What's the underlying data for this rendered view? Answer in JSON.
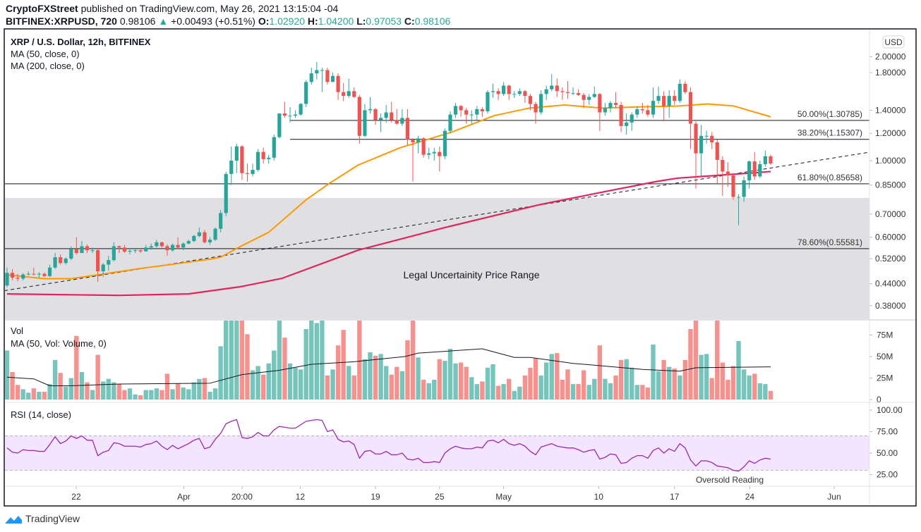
{
  "header": {
    "publisher": "CryptoFXStreet",
    "published_text": "published on TradingView.com, May 26, 2021 13:15:04 -04",
    "symbol": "BITFINEX:XRPUSD, 720",
    "last": "0.98106",
    "change": "+0.00493 (+0.51%)",
    "o_label": "O:",
    "o": "1.02920",
    "h_label": "H:",
    "h": "1.04200",
    "l_label": "L:",
    "l": "0.97053",
    "c_label": "C:",
    "c": "0.98106"
  },
  "legend": {
    "title": "XRP / U.S. Dollar, 12h, BITFINEX",
    "ma50": "MA (50, close, 0)",
    "ma200": "MA (200, close, 0)",
    "vol": "Vol",
    "vol_ma": "MA (50, Vol: Volume, 0)",
    "rsi": "RSI (14, close)"
  },
  "currency_badge": "USD",
  "footer": {
    "brand": "TradingView"
  },
  "colors": {
    "up": "#26a69a",
    "down": "#ef5350",
    "vol_up": "#76c5bd",
    "vol_down": "#f7918e",
    "ma50": "#ff9800",
    "ma200": "#e0245e",
    "rsi": "#9c27b0",
    "zone": "#e0e0e3",
    "rsi_band": "#f3e5fd",
    "brand": "#2196f3"
  },
  "chart_data": {
    "type": "candlestick",
    "title": "XRP / U.S. Dollar, 12h, BITFINEX",
    "y_scale": "log",
    "price_ticks": [
      {
        "v": 2.0,
        "label": "2.00000"
      },
      {
        "v": 1.8,
        "label": "1.80000"
      },
      {
        "v": 1.4,
        "label": "1.40000"
      },
      {
        "v": 1.2,
        "label": "1.20000"
      },
      {
        "v": 1.0,
        "label": "1.00000"
      },
      {
        "v": 0.85,
        "label": "0.85000"
      },
      {
        "v": 0.7,
        "label": "0.70000"
      },
      {
        "v": 0.6,
        "label": "0.60000"
      },
      {
        "v": 0.52,
        "label": "0.52000"
      },
      {
        "v": 0.44,
        "label": "0.44000"
      },
      {
        "v": 0.38,
        "label": "0.38000"
      }
    ],
    "x_ticks": [
      {
        "label": "22",
        "bar": 13.95
      },
      {
        "label": "Apr",
        "bar": 34.1
      },
      {
        "label": "20:00",
        "bar": 45
      },
      {
        "label": "12",
        "bar": 55.9
      },
      {
        "label": "19",
        "bar": 70
      },
      {
        "label": "25",
        "bar": 82
      },
      {
        "label": "May",
        "bar": 94
      },
      {
        "label": "10",
        "bar": 111.8
      },
      {
        "label": "17",
        "bar": 126
      },
      {
        "label": "24",
        "bar": 140.1
      },
      {
        "label": "Jun",
        "bar": 155.9
      }
    ],
    "candles_ohlc": [
      [
        0.435,
        0.49,
        0.43,
        0.473
      ],
      [
        0.473,
        0.485,
        0.45,
        0.458
      ],
      [
        0.458,
        0.47,
        0.447,
        0.455
      ],
      [
        0.455,
        0.472,
        0.45,
        0.468
      ],
      [
        0.468,
        0.478,
        0.465,
        0.47
      ],
      [
        0.47,
        0.49,
        0.465,
        0.468
      ],
      [
        0.468,
        0.475,
        0.458,
        0.47
      ],
      [
        0.47,
        0.474,
        0.46,
        0.463
      ],
      [
        0.463,
        0.5,
        0.46,
        0.49
      ],
      [
        0.49,
        0.54,
        0.485,
        0.525
      ],
      [
        0.525,
        0.535,
        0.5,
        0.505
      ],
      [
        0.505,
        0.525,
        0.5,
        0.52
      ],
      [
        0.52,
        0.565,
        0.515,
        0.555
      ],
      [
        0.555,
        0.6,
        0.535,
        0.54
      ],
      [
        0.54,
        0.585,
        0.54,
        0.565
      ],
      [
        0.565,
        0.572,
        0.54,
        0.55
      ],
      [
        0.55,
        0.56,
        0.54,
        0.55
      ],
      [
        0.55,
        0.556,
        0.445,
        0.478
      ],
      [
        0.478,
        0.505,
        0.46,
        0.5
      ],
      [
        0.5,
        0.53,
        0.48,
        0.515
      ],
      [
        0.515,
        0.58,
        0.51,
        0.565
      ],
      [
        0.565,
        0.568,
        0.54,
        0.56
      ],
      [
        0.56,
        0.57,
        0.54,
        0.545
      ],
      [
        0.545,
        0.558,
        0.535,
        0.548
      ],
      [
        0.548,
        0.556,
        0.54,
        0.55
      ],
      [
        0.55,
        0.552,
        0.54,
        0.546
      ],
      [
        0.546,
        0.57,
        0.545,
        0.56
      ],
      [
        0.56,
        0.575,
        0.552,
        0.565
      ],
      [
        0.565,
        0.59,
        0.56,
        0.58
      ],
      [
        0.58,
        0.582,
        0.56,
        0.565
      ],
      [
        0.565,
        0.572,
        0.53,
        0.55
      ],
      [
        0.55,
        0.575,
        0.545,
        0.57
      ],
      [
        0.57,
        0.6,
        0.555,
        0.56
      ],
      [
        0.56,
        0.58,
        0.55,
        0.575
      ],
      [
        0.575,
        0.59,
        0.572,
        0.585
      ],
      [
        0.585,
        0.61,
        0.58,
        0.605
      ],
      [
        0.605,
        0.64,
        0.6,
        0.62
      ],
      [
        0.62,
        0.63,
        0.575,
        0.58
      ],
      [
        0.58,
        0.6,
        0.57,
        0.59
      ],
      [
        0.59,
        0.64,
        0.585,
        0.635
      ],
      [
        0.635,
        0.72,
        0.62,
        0.705
      ],
      [
        0.705,
        0.93,
        0.69,
        0.915
      ],
      [
        0.915,
        1.1,
        0.85,
        1.0
      ],
      [
        1.0,
        1.12,
        0.92,
        1.1
      ],
      [
        1.1,
        1.11,
        0.88,
        0.92
      ],
      [
        0.92,
        0.98,
        0.87,
        0.915
      ],
      [
        0.915,
        0.98,
        0.9,
        0.94
      ],
      [
        0.94,
        1.08,
        0.93,
        1.06
      ],
      [
        1.06,
        1.09,
        0.98,
        1.01
      ],
      [
        1.01,
        1.04,
        0.98,
        1.02
      ],
      [
        1.02,
        1.19,
        1.0,
        1.17
      ],
      [
        1.17,
        1.37,
        1.16,
        1.37
      ],
      [
        1.37,
        1.48,
        1.33,
        1.35
      ],
      [
        1.35,
        1.43,
        1.29,
        1.35
      ],
      [
        1.35,
        1.4,
        1.33,
        1.36
      ],
      [
        1.36,
        1.47,
        1.35,
        1.46
      ],
      [
        1.46,
        1.71,
        1.43,
        1.69
      ],
      [
        1.69,
        1.86,
        1.66,
        1.79
      ],
      [
        1.79,
        1.93,
        1.72,
        1.83
      ],
      [
        1.83,
        1.86,
        1.58,
        1.83
      ],
      [
        1.83,
        1.86,
        1.66,
        1.69
      ],
      [
        1.69,
        1.8,
        1.69,
        1.76
      ],
      [
        1.76,
        1.79,
        1.5,
        1.58
      ],
      [
        1.58,
        1.68,
        1.49,
        1.54
      ],
      [
        1.54,
        1.73,
        1.52,
        1.59
      ],
      [
        1.59,
        1.63,
        1.52,
        1.53
      ],
      [
        1.53,
        1.55,
        1.12,
        1.18
      ],
      [
        1.18,
        1.46,
        1.17,
        1.4
      ],
      [
        1.4,
        1.53,
        1.37,
        1.41
      ],
      [
        1.41,
        1.42,
        1.27,
        1.31
      ],
      [
        1.31,
        1.37,
        1.21,
        1.33
      ],
      [
        1.33,
        1.45,
        1.29,
        1.38
      ],
      [
        1.38,
        1.48,
        1.29,
        1.31
      ],
      [
        1.31,
        1.41,
        1.27,
        1.28
      ],
      [
        1.28,
        1.41,
        1.26,
        1.33
      ],
      [
        1.33,
        1.41,
        1.11,
        1.15
      ],
      [
        1.15,
        1.16,
        0.87,
        1.13
      ],
      [
        1.13,
        1.18,
        1.05,
        1.16
      ],
      [
        1.16,
        1.17,
        1.02,
        1.04
      ],
      [
        1.04,
        1.09,
        1.01,
        1.05
      ],
      [
        1.05,
        1.09,
        1.0,
        1.06
      ],
      [
        1.06,
        1.1,
        0.93,
        1.03
      ],
      [
        1.03,
        1.24,
        1.01,
        1.22
      ],
      [
        1.22,
        1.39,
        1.2,
        1.36
      ],
      [
        1.36,
        1.47,
        1.33,
        1.44
      ],
      [
        1.44,
        1.45,
        1.34,
        1.4
      ],
      [
        1.4,
        1.42,
        1.28,
        1.36
      ],
      [
        1.36,
        1.4,
        1.28,
        1.36
      ],
      [
        1.36,
        1.44,
        1.31,
        1.41
      ],
      [
        1.41,
        1.43,
        1.34,
        1.39
      ],
      [
        1.39,
        1.6,
        1.37,
        1.58
      ],
      [
        1.58,
        1.67,
        1.52,
        1.59
      ],
      [
        1.59,
        1.62,
        1.5,
        1.56
      ],
      [
        1.56,
        1.69,
        1.54,
        1.65
      ],
      [
        1.65,
        1.66,
        1.5,
        1.56
      ],
      [
        1.56,
        1.59,
        1.52,
        1.56
      ],
      [
        1.56,
        1.62,
        1.54,
        1.59
      ],
      [
        1.59,
        1.6,
        1.47,
        1.54
      ],
      [
        1.54,
        1.56,
        1.4,
        1.46
      ],
      [
        1.46,
        1.48,
        1.28,
        1.38
      ],
      [
        1.38,
        1.6,
        1.36,
        1.56
      ],
      [
        1.56,
        1.65,
        1.5,
        1.61
      ],
      [
        1.61,
        1.78,
        1.59,
        1.65
      ],
      [
        1.65,
        1.73,
        1.53,
        1.59
      ],
      [
        1.59,
        1.63,
        1.5,
        1.58
      ],
      [
        1.58,
        1.7,
        1.51,
        1.57
      ],
      [
        1.57,
        1.63,
        1.55,
        1.57
      ],
      [
        1.57,
        1.61,
        1.54,
        1.55
      ],
      [
        1.55,
        1.57,
        1.42,
        1.5
      ],
      [
        1.5,
        1.56,
        1.45,
        1.53
      ],
      [
        1.53,
        1.64,
        1.52,
        1.56
      ],
      [
        1.56,
        1.57,
        1.22,
        1.38
      ],
      [
        1.38,
        1.47,
        1.35,
        1.42
      ],
      [
        1.42,
        1.49,
        1.38,
        1.47
      ],
      [
        1.47,
        1.58,
        1.42,
        1.45
      ],
      [
        1.45,
        1.48,
        1.21,
        1.26
      ],
      [
        1.26,
        1.37,
        1.19,
        1.29
      ],
      [
        1.29,
        1.38,
        1.22,
        1.36
      ],
      [
        1.36,
        1.44,
        1.33,
        1.41
      ],
      [
        1.41,
        1.47,
        1.37,
        1.4
      ],
      [
        1.4,
        1.45,
        1.34,
        1.36
      ],
      [
        1.36,
        1.63,
        1.33,
        1.49
      ],
      [
        1.49,
        1.64,
        1.46,
        1.54
      ],
      [
        1.54,
        1.59,
        1.3,
        1.44
      ],
      [
        1.44,
        1.6,
        1.33,
        1.54
      ],
      [
        1.54,
        1.6,
        1.45,
        1.49
      ],
      [
        1.49,
        1.72,
        1.47,
        1.67
      ],
      [
        1.67,
        1.7,
        1.56,
        1.58
      ],
      [
        1.58,
        1.63,
        1.08,
        1.28
      ],
      [
        1.28,
        1.3,
        0.83,
        1.05
      ],
      [
        1.05,
        1.27,
        0.9,
        1.18
      ],
      [
        1.18,
        1.22,
        1.12,
        1.18
      ],
      [
        1.18,
        1.21,
        1.08,
        1.13
      ],
      [
        1.13,
        1.15,
        0.86,
        1.005
      ],
      [
        1.005,
        1.03,
        0.79,
        0.93
      ],
      [
        0.93,
        0.99,
        0.84,
        0.906
      ],
      [
        0.906,
        0.92,
        0.77,
        0.785
      ],
      [
        0.785,
        0.8,
        0.65,
        0.785
      ],
      [
        0.785,
        0.9,
        0.76,
        0.877
      ],
      [
        0.877,
        1.0,
        0.83,
        0.995
      ],
      [
        0.995,
        1.06,
        0.88,
        0.9
      ],
      [
        0.9,
        1.0,
        0.89,
        0.977
      ],
      [
        0.977,
        1.07,
        0.96,
        1.03
      ],
      [
        1.0292,
        1.042,
        0.97053,
        0.98106
      ]
    ],
    "ma50": [
      [
        1,
        0.467
      ],
      [
        8,
        0.455
      ],
      [
        13,
        0.455
      ],
      [
        18,
        0.467
      ],
      [
        26,
        0.487
      ],
      [
        39,
        0.518
      ],
      [
        41,
        0.525
      ],
      [
        44.6,
        0.563
      ],
      [
        50,
        0.62
      ],
      [
        57,
        0.77
      ],
      [
        61.4,
        0.86
      ],
      [
        66.7,
        0.97
      ],
      [
        74.6,
        1.09
      ],
      [
        84.3,
        1.21
      ],
      [
        92.2,
        1.35
      ],
      [
        98.8,
        1.42
      ],
      [
        105.4,
        1.45
      ],
      [
        112.4,
        1.42
      ],
      [
        118.6,
        1.43
      ],
      [
        126.6,
        1.44
      ],
      [
        132.2,
        1.46
      ],
      [
        137.1,
        1.44
      ],
      [
        144,
        1.34
      ]
    ],
    "ma200": [
      [
        1,
        0.411
      ],
      [
        22,
        0.407
      ],
      [
        35,
        0.411
      ],
      [
        44.6,
        0.431
      ],
      [
        52.5,
        0.456
      ],
      [
        66.7,
        0.55
      ],
      [
        83,
        0.64
      ],
      [
        101,
        0.747
      ],
      [
        112.4,
        0.81
      ],
      [
        122.6,
        0.87
      ],
      [
        126.6,
        0.89
      ],
      [
        140,
        0.92
      ],
      [
        144,
        0.93
      ]
    ],
    "trendline": [
      [
        0.5,
        0.42
      ],
      [
        162.5,
        1.058
      ]
    ],
    "fib_levels": [
      {
        "label": "50.00%(1.30785)",
        "price": 1.30785,
        "start_bar": 54
      },
      {
        "label": "38.20%(1.15307)",
        "price": 1.15307,
        "start_bar": 54
      },
      {
        "label": "61.80%(0.85658)",
        "price": 0.85658,
        "start_bar": 0
      },
      {
        "label": "78.60%(0.55581)",
        "price": 0.55581,
        "start_bar": 0
      }
    ],
    "zone": {
      "label": "Legal Uncertainity Price Range",
      "upper": 0.78,
      "lower": 0.3
    },
    "volume_m": [
      57,
      32,
      17,
      12,
      8,
      13,
      9,
      9,
      18,
      46,
      31,
      15,
      25,
      74,
      32,
      20,
      11,
      52,
      21,
      24,
      20,
      18,
      11,
      13,
      6,
      5,
      11,
      11,
      13,
      11,
      30,
      12,
      19,
      14,
      12,
      20,
      24,
      25,
      9,
      13,
      62,
      100,
      100,
      100,
      100,
      76,
      34,
      39,
      29,
      42,
      57,
      100,
      72,
      42,
      37,
      35,
      82,
      100,
      89,
      100,
      28,
      35,
      63,
      81,
      39,
      28,
      100,
      47,
      55,
      51,
      53,
      39,
      29,
      38,
      33,
      69,
      100,
      49,
      23,
      19,
      23,
      47,
      45,
      59,
      42,
      43,
      38,
      26,
      18,
      21,
      37,
      41,
      16,
      18,
      24,
      10,
      15,
      28,
      37,
      48,
      28,
      43,
      53,
      54,
      23,
      35,
      18,
      18,
      34,
      17,
      24,
      63,
      24,
      19,
      28,
      46,
      47,
      37,
      17,
      17,
      14,
      64,
      33,
      46,
      38,
      36,
      28,
      46,
      82,
      100,
      52,
      53,
      25,
      100,
      43,
      23,
      39,
      68,
      35,
      28,
      30,
      19,
      18,
      10
    ],
    "vol_ma50_m": [
      [
        1,
        26
      ],
      [
        6,
        24
      ],
      [
        9,
        16
      ],
      [
        13,
        16
      ],
      [
        22,
        18
      ],
      [
        39,
        19
      ],
      [
        45,
        29
      ],
      [
        52,
        34
      ],
      [
        58,
        41
      ],
      [
        66,
        44
      ],
      [
        75.5,
        50
      ],
      [
        78,
        54
      ],
      [
        90,
        59
      ],
      [
        96,
        49
      ],
      [
        99,
        49
      ],
      [
        107,
        42
      ],
      [
        111,
        40
      ],
      [
        120,
        35
      ],
      [
        127,
        33
      ],
      [
        130,
        37
      ],
      [
        144,
        38
      ]
    ],
    "volume_ticks": [
      {
        "v": 75,
        "label": "75M"
      },
      {
        "v": 50,
        "label": "50M"
      },
      {
        "v": 25,
        "label": "25M"
      },
      {
        "v": 0,
        "label": "0"
      }
    ],
    "rsi": [
      56,
      51,
      50,
      54,
      53,
      53,
      52,
      52,
      60,
      69,
      61,
      64,
      70,
      67,
      70,
      65,
      65,
      47,
      51,
      53,
      62,
      61,
      58,
      58,
      58,
      57,
      60,
      61,
      64,
      58,
      54,
      59,
      55,
      58,
      61,
      65,
      67,
      55,
      57,
      66,
      73,
      84,
      87,
      89,
      68,
      67,
      69,
      74,
      70,
      70,
      77,
      81,
      80,
      79,
      79,
      83,
      87,
      88,
      89,
      88,
      75,
      77,
      66,
      63,
      64,
      60,
      44,
      52,
      53,
      49,
      49,
      52,
      48,
      48,
      50,
      43,
      42,
      44,
      39,
      39,
      40,
      39,
      50,
      55,
      58,
      56,
      55,
      55,
      57,
      56,
      64,
      65,
      62,
      66,
      61,
      59,
      61,
      58,
      52,
      48,
      57,
      59,
      61,
      58,
      57,
      56,
      56,
      54,
      51,
      53,
      54,
      43,
      45,
      49,
      48,
      38,
      39,
      44,
      47,
      47,
      44,
      53,
      56,
      50,
      55,
      52,
      61,
      56,
      42,
      35,
      41,
      41,
      39,
      35,
      34,
      33,
      30,
      29,
      34,
      41,
      38,
      42,
      44,
      43
    ],
    "rsi_ticks": [
      {
        "v": 100,
        "label": "100.00"
      },
      {
        "v": 75,
        "label": "75.00"
      },
      {
        "v": 50,
        "label": "50.00"
      },
      {
        "v": 25,
        "label": "25.00"
      }
    ],
    "rsi_band": [
      30,
      70
    ],
    "annotations": {
      "oversold": "Oversold Reading"
    }
  }
}
